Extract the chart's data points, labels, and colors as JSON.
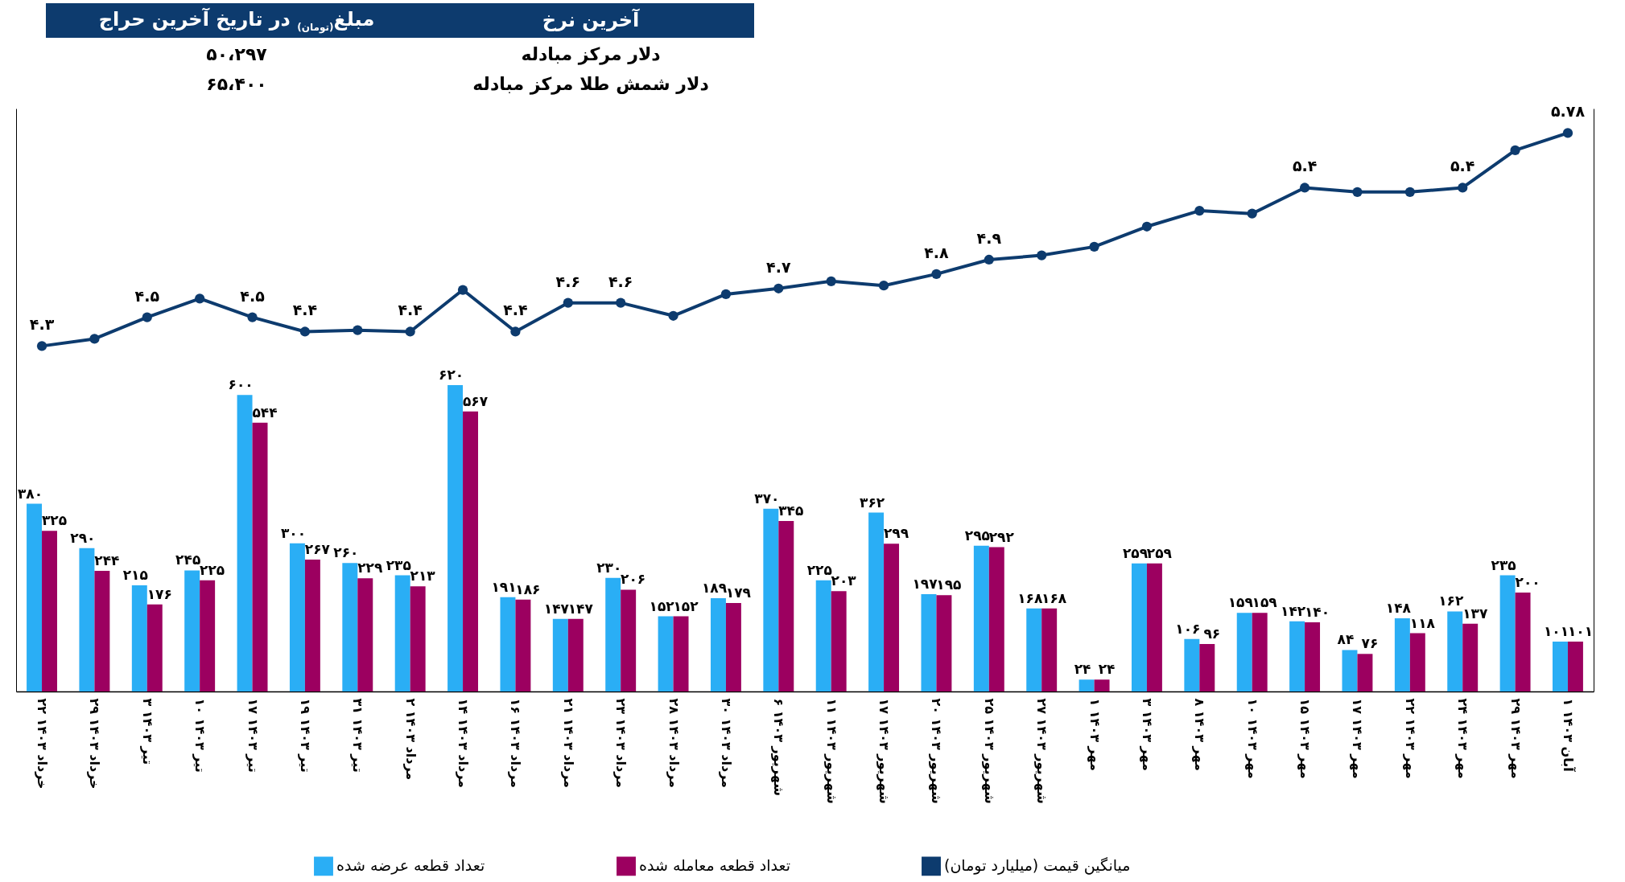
{
  "chart_data": {
    "type": "bar",
    "categories": [
      "۲۲ خرداد ۱۴۰۳",
      "۲۹ خرداد ۱۴۰۳",
      "۳ تیر ۱۴۰۳",
      "۱۰ تیر ۱۴۰۳",
      "۱۷ تیر ۱۴۰۳",
      "۱۹ تیر ۱۴۰۳",
      "۳۱ تیر ۱۴۰۳",
      "۲ مرداد ۱۴۰۳",
      "۱۴ مرداد ۱۴۰۳",
      "۱۶ مرداد ۱۴۰۳",
      "۲۱ مرداد ۱۴۰۳",
      "۲۳ مرداد ۱۴۰۳",
      "۲۸ مرداد ۱۴۰۳",
      "۳۰ مرداد ۱۴۰۳",
      "۶ شهریور ۱۴۰۳",
      "۱۱ شهریور ۱۴۰۳",
      "۱۷ شهریور ۱۴۰۳",
      "۲۰ شهریور ۱۴۰۳",
      "۲۵ شهریور ۱۴۰۳",
      "۲۷ شهریور ۱۴۰۳",
      "۱ مهر ۱۴۰۳",
      "۳ مهر ۱۴۰۳",
      "۸ مهر ۱۴۰۳",
      "۱۰ مهر ۱۴۰۳",
      "۱۵ مهر ۱۴۰۳",
      "۱۷ مهر ۱۴۰۳",
      "۲۲ مهر ۱۴۰۳",
      "۲۴ مهر ۱۴۰۳",
      "۲۹ مهر ۱۴۰۳",
      "۱ آبان ۱۴۰۳"
    ],
    "series": [
      {
        "name": "تعداد قطعه عرضه شده",
        "color": "#2aaef5",
        "values": [
          380,
          290,
          215,
          245,
          600,
          300,
          260,
          235,
          620,
          191,
          147,
          230,
          152,
          189,
          370,
          225,
          362,
          197,
          295,
          168,
          24,
          259,
          106,
          159,
          142,
          84,
          148,
          162,
          235,
          101
        ],
        "value_labels": [
          "۳۸۰",
          "۲۹۰",
          "۲۱۵",
          "۲۴۵",
          "۶۰۰",
          "۳۰۰",
          "۲۶۰",
          "۲۳۵",
          "۶۲۰",
          "۱۹۱",
          "۱۴۷",
          "۲۳۰",
          "۱۵۲",
          "۱۸۹",
          "۳۷۰",
          "۲۲۵",
          "۳۶۲",
          "۱۹۷",
          "۲۹۵",
          "۱۶۸",
          "۲۴",
          "۲۵۹",
          "۱۰۶",
          "۱۵۹",
          "۱۴۲",
          "۸۴",
          "۱۴۸",
          "۱۶۲",
          "۲۳۵",
          "۱۰۱"
        ]
      },
      {
        "name": "تعداد قطعه معامله شده",
        "color": "#9c0060",
        "values": [
          325,
          244,
          176,
          225,
          544,
          267,
          229,
          213,
          567,
          186,
          147,
          206,
          152,
          179,
          345,
          203,
          299,
          195,
          292,
          168,
          24,
          259,
          96,
          159,
          140,
          76,
          118,
          137,
          200,
          101
        ],
        "value_labels": [
          "۳۲۵",
          "۲۴۴",
          "۱۷۶",
          "۲۲۵",
          "۵۴۴",
          "۲۶۷",
          "۲۲۹",
          "۲۱۳",
          "۵۶۷",
          "۱۸۶",
          "۱۴۷",
          "۲۰۶",
          "۱۵۲",
          "۱۷۹",
          "۳۴۵",
          "۲۰۳",
          "۲۹۹",
          "۱۹۵",
          "۲۹۲",
          "۱۶۸",
          "۲۴",
          "۲۵۹",
          "۹۶",
          "۱۵۹",
          "۱۴۰",
          "۷۶",
          "۱۱۸",
          "۱۳۷",
          "۲۰۰",
          "۱۰۱"
        ]
      },
      {
        "name": "میانگین قیمت (میلیارد تومان)",
        "color": "#0d3b6e",
        "type": "line",
        "axis": "y2",
        "values": [
          4.3,
          4.35,
          4.5,
          4.63,
          4.5,
          4.4,
          4.41,
          4.4,
          4.69,
          4.4,
          4.6,
          4.6,
          4.51,
          4.66,
          4.7,
          4.75,
          4.72,
          4.8,
          4.9,
          4.93,
          4.99,
          5.13,
          5.24,
          5.22,
          5.4,
          5.37,
          5.37,
          5.4,
          5.66,
          5.78
        ],
        "value_labels": [
          "۴.۳",
          null,
          "۴.۵",
          null,
          "۴.۵",
          "۴.۴",
          null,
          "۴.۴",
          null,
          "۴.۴",
          "۴.۶",
          "۴.۶",
          null,
          null,
          "۴.۷",
          null,
          null,
          "۴.۸",
          "۴.۹",
          null,
          null,
          null,
          null,
          null,
          "۵.۴",
          null,
          null,
          "۵.۴",
          null,
          "۵.۷۸"
        ]
      }
    ],
    "ylim": [
      0,
      1180
    ],
    "y2lim": [
      1.9,
      5.95
    ],
    "tick_labels": "x",
    "legend": "bottom",
    "marker": "circle",
    "line_style": "solid",
    "annotations": [
      "آخرین نرخ",
      "مبلغ$_{(تومان)}$ در تاریخ آخرین حراج",
      "دلار مرکز مبادله",
      "۵۰،۲۹۷",
      "دلار شمش طلا مرکز مبادله",
      "۶۵،۴۰۰"
    ]
  }
}
